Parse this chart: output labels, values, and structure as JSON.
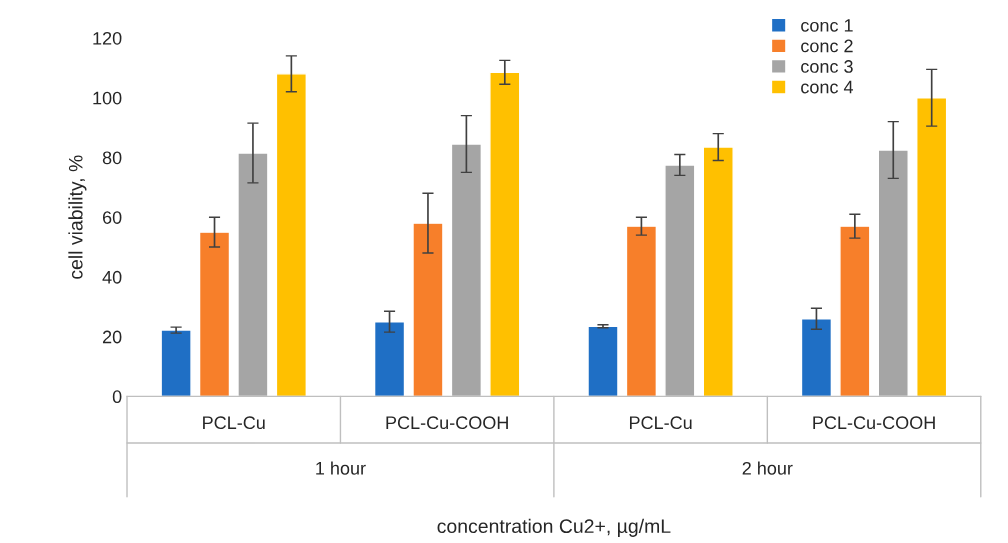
{
  "chart_data": {
    "type": "bar",
    "xlabel": "concentration Cu2+, µg/mL",
    "ylabel": "cell viability, %",
    "categories": [
      "PCL-Cu",
      "PCL-Cu-COOH",
      "PCL-Cu",
      "PCL-Cu-COOH"
    ],
    "annotations": [
      "1 hour",
      "2 hour"
    ],
    "series": [
      {
        "name": "conc 1",
        "color": "#1f6fc5",
        "values": [
          22.2,
          25,
          23.5,
          26
        ],
        "errors": [
          1,
          3.5,
          0.5,
          3.5
        ]
      },
      {
        "name": "conc 2",
        "color": "#f77f2a",
        "values": [
          55,
          58,
          57,
          57
        ],
        "errors": [
          5,
          10,
          3,
          4
        ]
      },
      {
        "name": "conc 3",
        "color": "#a5a5a5",
        "values": [
          81.5,
          84.5,
          77.5,
          82.5
        ],
        "errors": [
          10,
          9.5,
          3.5,
          9.5
        ]
      },
      {
        "name": "conc 4",
        "color": "#ffc000",
        "values": [
          108,
          108.5,
          83.5,
          100
        ],
        "errors": [
          6,
          4,
          4.5,
          9.5
        ]
      }
    ],
    "ylim": [
      0,
      120
    ],
    "yticks": [
      0,
      20,
      40,
      60,
      80,
      100,
      120
    ],
    "grid": false,
    "legend": "top right"
  }
}
